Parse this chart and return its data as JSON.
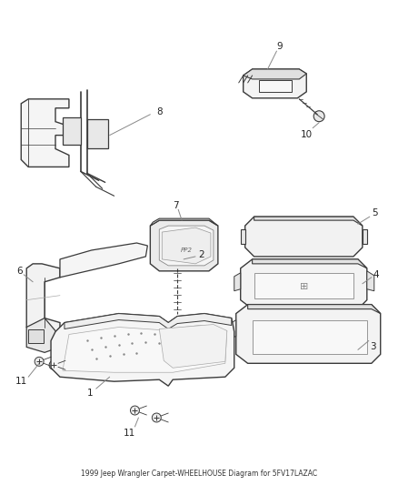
{
  "title": "1999 Jeep Wrangler Carpet-WHEELHOUSE Diagram for 5FV17LAZAC",
  "background_color": "#ffffff",
  "line_color": "#3a3a3a",
  "label_color": "#222222",
  "fig_width": 4.38,
  "fig_height": 5.33,
  "dpi": 100
}
